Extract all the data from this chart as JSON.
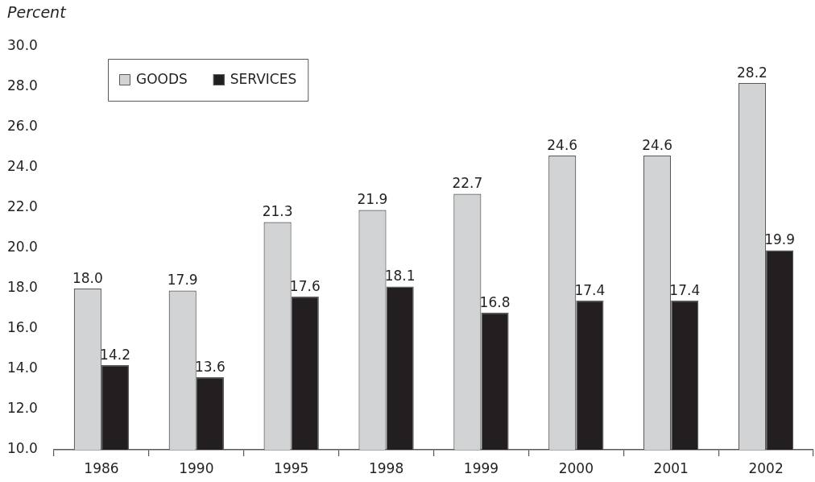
{
  "chart_data": {
    "type": "bar",
    "ylabel": "Percent",
    "categories": [
      "1986",
      "1990",
      "1995",
      "1998",
      "1999",
      "2000",
      "2001",
      "2002"
    ],
    "series": [
      {
        "name": "GOODS",
        "color": "#d1d3d4",
        "values": [
          18.0,
          17.9,
          21.3,
          21.9,
          22.7,
          24.6,
          24.6,
          28.2
        ],
        "value_labels": [
          "18.0",
          "17.9",
          "21.3",
          "21.9",
          "22.7",
          "24.6",
          "24.6",
          "28.2"
        ]
      },
      {
        "name": "SERVICES",
        "color": "#231f20",
        "values": [
          14.2,
          13.6,
          17.6,
          18.1,
          16.8,
          17.4,
          17.4,
          19.9
        ],
        "value_labels": [
          "14.2",
          "13.6",
          "17.6",
          "18.1",
          "16.8",
          "17.4",
          "17.4",
          "19.9"
        ]
      }
    ],
    "ylim": [
      10,
      30
    ],
    "yticks": [
      {
        "value": 10,
        "label": "10.0"
      },
      {
        "value": 12,
        "label": "12.0"
      },
      {
        "value": 14,
        "label": "14.0"
      },
      {
        "value": 16,
        "label": "16.0"
      },
      {
        "value": 18,
        "label": "18.0"
      },
      {
        "value": 20,
        "label": "20.0"
      },
      {
        "value": 22,
        "label": "22.0"
      },
      {
        "value": 24,
        "label": "24.0"
      },
      {
        "value": 26,
        "label": "26.0"
      },
      {
        "value": 28,
        "label": "28.0"
      },
      {
        "value": 30,
        "label": "30.0"
      }
    ],
    "legend": "top left"
  }
}
